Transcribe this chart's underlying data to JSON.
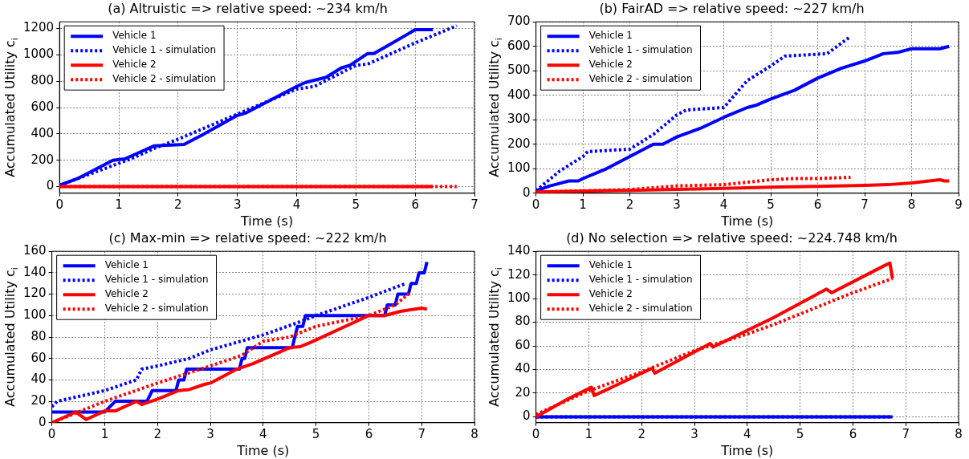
{
  "chart_data": [
    {
      "type": "line",
      "title": "(a) Altruistic => relative speed: ~234 km/h",
      "xlabel": "Time (s)",
      "ylabel": "Accumulated Utility c$_{i}$",
      "xlim": [
        0,
        7
      ],
      "xticks": [
        0,
        1,
        2,
        3,
        4,
        5,
        6,
        7
      ],
      "ylim": [
        -50,
        1250
      ],
      "yticks": [
        0,
        200,
        400,
        600,
        800,
        1000,
        1200
      ],
      "grid": true,
      "legend": "top left",
      "marker": "none",
      "series": [
        {
          "name": "Vehicle 1",
          "color": "#0000ff",
          "line_style": "solid",
          "x": [
            0,
            0.3,
            0.9,
            1.1,
            1.3,
            1.6,
            2.1,
            2.4,
            3.0,
            3.15,
            4.0,
            4.15,
            4.5,
            4.75,
            4.9,
            5.2,
            5.3,
            5.5,
            6.0,
            6.3
          ],
          "values": [
            10,
            60,
            200,
            210,
            250,
            310,
            320,
            390,
            540,
            560,
            760,
            790,
            830,
            900,
            920,
            1010,
            1010,
            1060,
            1190,
            1190
          ]
        },
        {
          "name": "Vehicle 1 - simulation",
          "color": "#0000ff",
          "line_style": "dotted",
          "x": [
            0,
            1.2,
            1.6,
            2,
            3,
            4,
            4.3,
            5,
            5.2,
            6,
            6.7
          ],
          "values": [
            10,
            210,
            290,
            360,
            550,
            740,
            760,
            920,
            930,
            1090,
            1220
          ]
        },
        {
          "name": "Vehicle 2",
          "color": "#ff0000",
          "line_style": "solid",
          "x": [
            0,
            6.3
          ],
          "values": [
            0,
            0
          ]
        },
        {
          "name": "Vehicle 2 - simulation",
          "color": "#ff0000",
          "line_style": "dotted",
          "x": [
            0,
            6.7
          ],
          "values": [
            0,
            0
          ]
        }
      ]
    },
    {
      "type": "line",
      "title": "(b) FairAD => relative speed: ~227 km/h",
      "xlabel": "Time (s)",
      "ylabel": "Accumulated Utility c$_{i}$",
      "xlim": [
        0,
        9
      ],
      "xticks": [
        0,
        1,
        2,
        3,
        4,
        5,
        6,
        7,
        8,
        9
      ],
      "ylim": [
        0,
        700
      ],
      "yticks": [
        0,
        100,
        200,
        300,
        400,
        500,
        600,
        700
      ],
      "grid": true,
      "legend": "top left",
      "marker": "none",
      "series": [
        {
          "name": "Vehicle 1",
          "color": "#0000ff",
          "line_style": "solid",
          "x": [
            0,
            0.3,
            0.5,
            0.7,
            0.9,
            1,
            1.5,
            2,
            2.5,
            2.7,
            3,
            3.5,
            4,
            4.5,
            4.7,
            5,
            5.5,
            6,
            6.5,
            7,
            7.4,
            7.7,
            8,
            8.6,
            8.8
          ],
          "values": [
            10,
            30,
            40,
            50,
            50,
            60,
            100,
            150,
            200,
            200,
            230,
            265,
            310,
            350,
            360,
            385,
            420,
            470,
            510,
            540,
            570,
            575,
            590,
            590,
            600
          ]
        },
        {
          "name": "Vehicle 1 - simulation",
          "color": "#0000ff",
          "line_style": "dotted",
          "x": [
            0,
            0.5,
            1,
            1.1,
            2,
            2.5,
            3,
            3.2,
            4,
            4.5,
            5,
            5.3,
            6.2,
            6.7
          ],
          "values": [
            10,
            90,
            150,
            170,
            180,
            240,
            320,
            340,
            350,
            460,
            520,
            560,
            570,
            640
          ]
        },
        {
          "name": "Vehicle 2",
          "color": "#ff0000",
          "line_style": "solid",
          "x": [
            0,
            2,
            4,
            5,
            6,
            7,
            7.5,
            8,
            8.6,
            8.7,
            8.8
          ],
          "values": [
            5,
            12,
            20,
            25,
            28,
            32,
            35,
            42,
            55,
            50,
            50
          ]
        },
        {
          "name": "Vehicle 2 - simulation",
          "color": "#ff0000",
          "line_style": "dotted",
          "x": [
            0,
            1,
            2,
            3,
            4,
            5,
            5.5,
            6,
            6.7
          ],
          "values": [
            5,
            10,
            15,
            30,
            35,
            55,
            60,
            60,
            65
          ]
        }
      ]
    },
    {
      "type": "line",
      "title": "(c) Max-min => relative speed: ~222 km/h",
      "xlabel": "Time (s)",
      "ylabel": "Accumulated Utility c$_{i}$",
      "xlim": [
        0,
        8
      ],
      "xticks": [
        0,
        1,
        2,
        3,
        4,
        5,
        6,
        7,
        8
      ],
      "ylim": [
        0,
        160
      ],
      "yticks": [
        0,
        20,
        40,
        60,
        80,
        100,
        120,
        140,
        160
      ],
      "grid": true,
      "legend": "top left",
      "marker": "none",
      "series": [
        {
          "name": "Vehicle 1",
          "color": "#0000ff",
          "line_style": "solid",
          "x": [
            0,
            1,
            1.2,
            1.8,
            1.9,
            2.35,
            2.4,
            2.5,
            2.55,
            3.55,
            3.6,
            3.65,
            3.7,
            4.55,
            4.6,
            4.65,
            4.75,
            4.8,
            6.3,
            6.35,
            6.5,
            6.55,
            6.75,
            6.8,
            6.9,
            6.95,
            7.05,
            7.1
          ],
          "values": [
            10,
            10,
            20,
            20,
            30,
            30,
            40,
            40,
            50,
            50,
            60,
            60,
            70,
            70,
            80,
            90,
            90,
            100,
            100,
            110,
            110,
            120,
            120,
            130,
            130,
            140,
            140,
            150
          ]
        },
        {
          "name": "Vehicle 1 - simulation",
          "color": "#0000ff",
          "line_style": "dotted",
          "x": [
            0,
            0.1,
            1,
            1.6,
            1.7,
            2,
            2.6,
            3,
            4,
            4.8,
            5,
            6,
            6.7
          ],
          "values": [
            15,
            20,
            30,
            40,
            50,
            53,
            60,
            68,
            82,
            96,
            100,
            117,
            130
          ]
        },
        {
          "name": "Vehicle 2",
          "color": "#ff0000",
          "line_style": "solid",
          "x": [
            0,
            0.45,
            0.65,
            1,
            1.2,
            1.6,
            1.7,
            2,
            2.4,
            2.6,
            2.9,
            3,
            3.5,
            3.8,
            4.5,
            4.7,
            4.9,
            6,
            6.3,
            6.6,
            7,
            7.1
          ],
          "values": [
            0,
            10,
            3,
            11,
            11,
            20,
            17,
            22,
            30,
            31,
            36,
            37,
            50,
            55,
            70,
            71,
            75,
            100,
            100,
            104,
            107,
            106
          ]
        },
        {
          "name": "Vehicle 2 - simulation",
          "color": "#ff0000",
          "line_style": "dotted",
          "x": [
            0,
            1,
            2,
            3,
            3.6,
            4,
            4.5,
            5,
            6,
            6.5,
            6.8
          ],
          "values": [
            0,
            20,
            37,
            53,
            63,
            76,
            80,
            90,
            100,
            110,
            122
          ]
        }
      ]
    },
    {
      "type": "line",
      "title": "(d) No selection => relative speed: ~224.748 km/h",
      "xlabel": "Time (s)",
      "ylabel": "Accumulated Utility c$_{i}$",
      "xlim": [
        0,
        8
      ],
      "xticks": [
        0,
        1,
        2,
        3,
        4,
        5,
        6,
        7,
        8
      ],
      "ylim": [
        -5,
        140
      ],
      "yticks": [
        0,
        20,
        40,
        60,
        80,
        100,
        120,
        140
      ],
      "grid": true,
      "legend": "top left",
      "marker": "none",
      "series": [
        {
          "name": "Vehicle 1",
          "color": "#0000ff",
          "line_style": "solid",
          "x": [
            0,
            6.75
          ],
          "values": [
            0,
            0
          ]
        },
        {
          "name": "Vehicle 1 - simulation",
          "color": "#0000ff",
          "line_style": "dotted",
          "x": [
            0,
            6.75
          ],
          "values": [
            0,
            0
          ]
        },
        {
          "name": "Vehicle 2",
          "color": "#ff0000",
          "line_style": "solid",
          "x": [
            0,
            0.6,
            1.05,
            1.1,
            2.2,
            2.25,
            3.3,
            3.35,
            4.5,
            5.5,
            5.6,
            6.6,
            6.7,
            6.75
          ],
          "values": [
            0,
            15,
            25,
            18,
            41,
            37,
            62,
            59,
            84,
            108,
            105,
            128,
            130,
            117
          ]
        },
        {
          "name": "Vehicle 2 - simulation",
          "color": "#ff0000",
          "line_style": "dotted",
          "x": [
            0,
            1,
            2,
            3,
            4,
            4.5,
            5.5,
            6,
            6.75
          ],
          "values": [
            2,
            22,
            38,
            56,
            70,
            78,
            96,
            105,
            117
          ]
        }
      ]
    }
  ]
}
